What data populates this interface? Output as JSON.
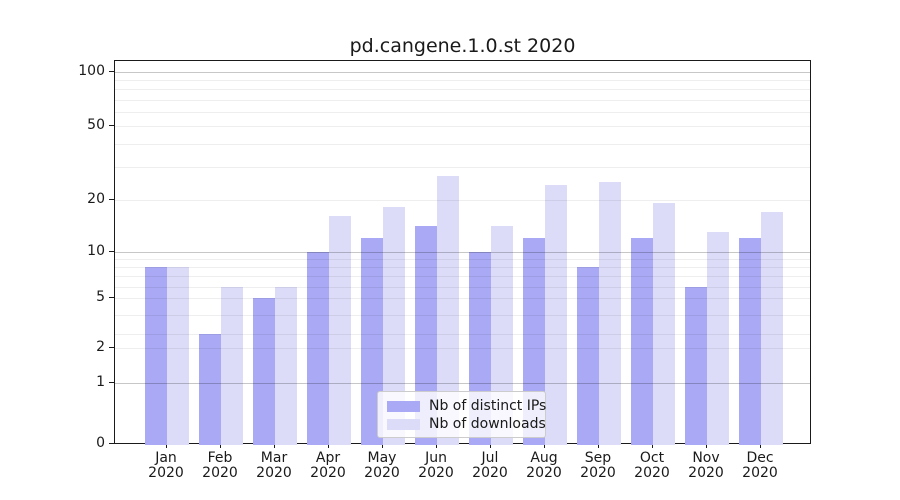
{
  "title": "pd.cangene.1.0.st 2020",
  "chart_data": {
    "type": "bar",
    "title": "pd.cangene.1.0.st 2020",
    "categories": [
      "Jan",
      "Feb",
      "Mar",
      "Apr",
      "May",
      "Jun",
      "Jul",
      "Aug",
      "Sep",
      "Oct",
      "Nov",
      "Dec"
    ],
    "year": "2020",
    "series": [
      {
        "name": "Nb of distinct IPs",
        "color": "#a9a9f5",
        "values": [
          8,
          3,
          5,
          10,
          12,
          14,
          10,
          12,
          8,
          12,
          6,
          12
        ]
      },
      {
        "name": "Nb of downloads",
        "color": "#dcdcf8",
        "values": [
          8,
          6,
          6,
          16,
          18,
          27,
          14,
          24,
          25,
          19,
          13,
          17
        ]
      }
    ],
    "yticks": [
      0,
      1,
      2,
      5,
      10,
      20,
      50,
      100
    ],
    "ylim": [
      0,
      130
    ],
    "yscale": "log-like",
    "grid": "horizontal",
    "legend_position": "bottom-center"
  }
}
